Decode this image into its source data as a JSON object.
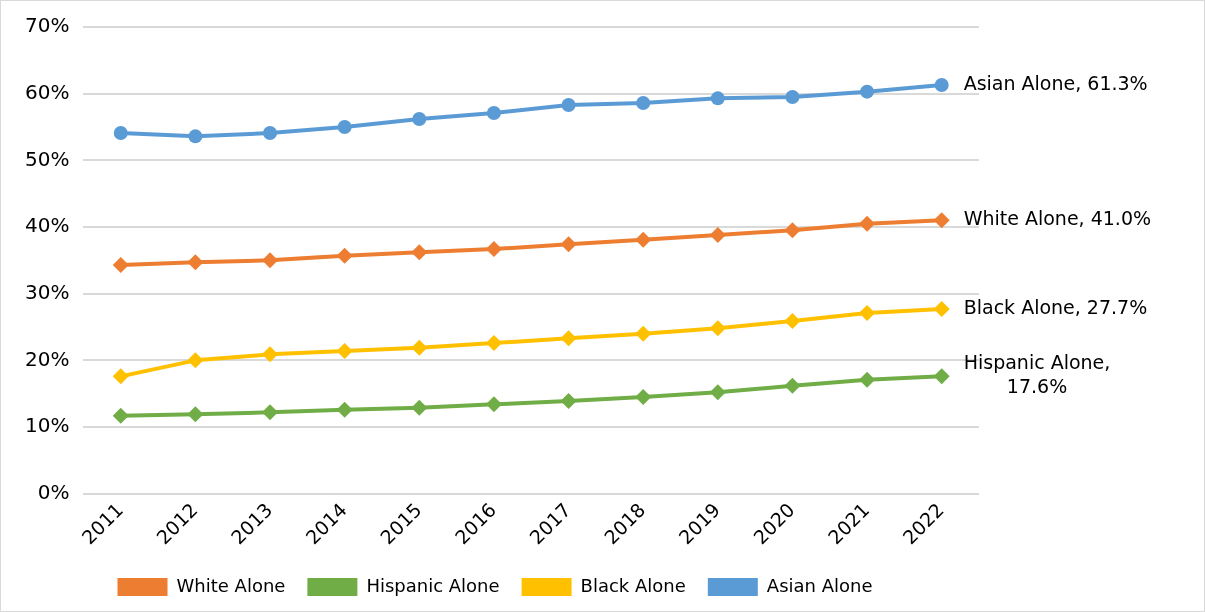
{
  "chart_data": {
    "type": "line",
    "categories": [
      "2011",
      "2012",
      "2013",
      "2014",
      "2015",
      "2016",
      "2017",
      "2018",
      "2019",
      "2020",
      "2021",
      "2022"
    ],
    "series": [
      {
        "name": "White Alone",
        "color": "#ed7d31",
        "marker": "diamond",
        "values": [
          34.3,
          34.7,
          35.0,
          35.7,
          36.2,
          36.7,
          37.4,
          38.1,
          38.8,
          39.5,
          40.5,
          41.0
        ]
      },
      {
        "name": "Hispanic Alone",
        "color": "#70ad47",
        "marker": "diamond",
        "values": [
          11.7,
          11.9,
          12.2,
          12.6,
          12.9,
          13.4,
          13.9,
          14.5,
          15.2,
          16.2,
          17.1,
          17.6
        ]
      },
      {
        "name": "Black Alone",
        "color": "#ffc000",
        "marker": "diamond",
        "values": [
          17.6,
          20.0,
          20.9,
          21.4,
          21.9,
          22.6,
          23.3,
          24.0,
          24.8,
          25.9,
          27.1,
          27.7
        ]
      },
      {
        "name": "Asian Alone",
        "color": "#5b9bd5",
        "marker": "circle",
        "values": [
          54.1,
          53.6,
          54.1,
          55.0,
          56.2,
          57.1,
          58.3,
          58.6,
          59.3,
          59.5,
          60.3,
          61.3
        ]
      }
    ],
    "ylim": [
      0,
      70
    ],
    "yticks": [
      {
        "value": 0,
        "label": "0%"
      },
      {
        "value": 10,
        "label": "10%"
      },
      {
        "value": 20,
        "label": "20%"
      },
      {
        "value": 30,
        "label": "30%"
      },
      {
        "value": 40,
        "label": "40%"
      },
      {
        "value": 50,
        "label": "50%"
      },
      {
        "value": 60,
        "label": "60%"
      },
      {
        "value": 70,
        "label": "70%"
      }
    ],
    "grid": "y",
    "legend": "bottom",
    "line_style": "solid",
    "annotations": [
      {
        "text": "Asian Alone, 61.3%",
        "x": "2022",
        "y": 61.3
      },
      {
        "text": "White Alone, 41.0%",
        "x": "2022",
        "y": 41.0
      },
      {
        "text": "Black Alone, 27.7%",
        "x": "2022",
        "y": 27.7
      },
      {
        "text": "Hispanic Alone, 17.6%",
        "x": "2022",
        "y": 17.6
      }
    ]
  }
}
